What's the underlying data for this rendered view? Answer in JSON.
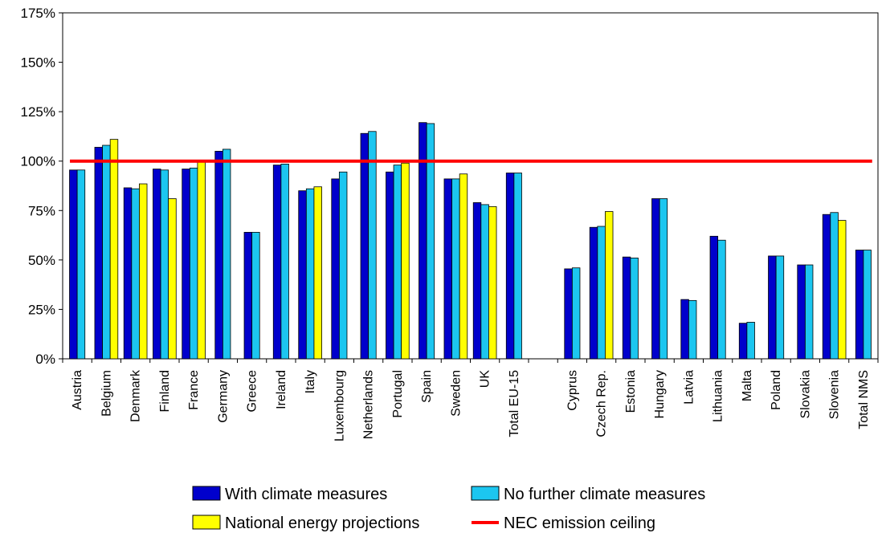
{
  "chart_data": {
    "type": "bar",
    "ylim": [
      0,
      175
    ],
    "yticks": [
      "0%",
      "25%",
      "50%",
      "75%",
      "100%",
      "125%",
      "150%",
      "175%"
    ],
    "grid": false,
    "legend_position": "bottom",
    "categories": [
      "Austria",
      "Belgium",
      "Denmark",
      "Finland",
      "France",
      "Germany",
      "Greece",
      "Ireland",
      "Italy",
      "Luxembourg",
      "Netherlands",
      "Portugal",
      "Spain",
      "Sweden",
      "UK",
      "Total EU-15",
      "",
      "Cyprus",
      "Czech Rep.",
      "Estonia",
      "Hungary",
      "Latvia",
      "Lithuania",
      "Malta",
      "Poland",
      "Slovakia",
      "Slovenia",
      "Total NMS"
    ],
    "series": [
      {
        "name": "With climate measures",
        "color": "#0000cc",
        "values": [
          95.5,
          107,
          86.5,
          96,
          96,
          105,
          64,
          98,
          85,
          91,
          114,
          94.5,
          119.5,
          91,
          79,
          94,
          null,
          45.5,
          66.5,
          51.5,
          81,
          30,
          62,
          18,
          52,
          47.5,
          73,
          55
        ]
      },
      {
        "name": "No further climate measures",
        "color": "#1cc6f0",
        "values": [
          95.5,
          108,
          86,
          95.5,
          96.5,
          106,
          64,
          98.5,
          86,
          94.5,
          115,
          98,
          119,
          91,
          78,
          94,
          null,
          46,
          67,
          51,
          81,
          29.5,
          60,
          18.5,
          52,
          47.5,
          74,
          55
        ]
      },
      {
        "name": "National energy projections",
        "color": "#ffff00",
        "values": [
          null,
          111,
          88.5,
          81,
          100,
          null,
          null,
          null,
          87,
          null,
          null,
          99,
          null,
          93.5,
          77,
          null,
          null,
          null,
          74.5,
          null,
          null,
          null,
          null,
          null,
          null,
          null,
          70,
          null
        ]
      }
    ],
    "reference_line": {
      "name": "NEC emission ceiling",
      "value": 100,
      "color": "#ff0000"
    }
  }
}
